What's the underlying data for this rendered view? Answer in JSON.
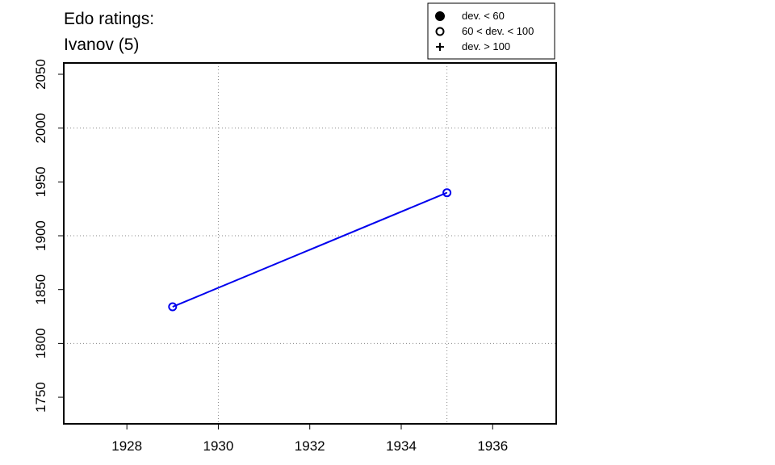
{
  "chart_data": {
    "type": "line",
    "title": [
      "Edo ratings:",
      "Ivanov (5)"
    ],
    "x": [
      1929,
      1935
    ],
    "series": [
      {
        "color": "#0000ee",
        "marker": "open-circle",
        "values": [
          1834,
          1940
        ]
      }
    ],
    "xlim": [
      1926.62,
      1937.39
    ],
    "xticks": [
      1928,
      1930,
      1932,
      1934,
      1936
    ],
    "ylim": [
      1725.3,
      2060.5
    ],
    "yticks": [
      1750,
      1800,
      1850,
      1900,
      1950,
      2000,
      2050
    ],
    "xgrid": [
      1930,
      1935
    ],
    "ygrid": [
      1800,
      1900,
      2000
    ],
    "legend": [
      {
        "label": "dev. < 60",
        "marker": "filled-circle"
      },
      {
        "label": "60 < dev. < 100",
        "marker": "open-circle"
      },
      {
        "label": "dev. > 100",
        "marker": "plus"
      }
    ],
    "legend_position": "top-right"
  }
}
